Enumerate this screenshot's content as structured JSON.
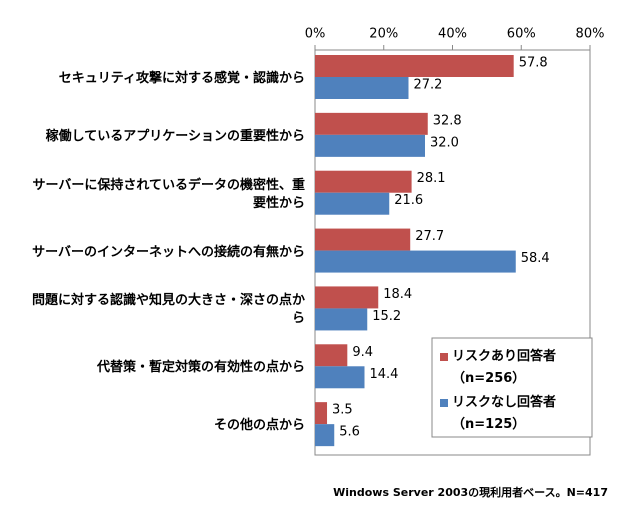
{
  "chart_data": {
    "type": "hbar",
    "categories": [
      "セキュリティ攻撃に対する感覚・認識から",
      "稼働しているアプリケーションの重要性から",
      "サーバーに保持されているデータの機密性、重要性から",
      "サーバーのインターネットへの接続の有無から",
      "問題に対する認識や知見の大きさ・深さの点から",
      "代替策・暫定対策の有効性の点から",
      "その他の点から"
    ],
    "series": [
      {
        "name": "リスクあり回答者（n=256）",
        "color": "#c0504d",
        "values": [
          57.8,
          32.8,
          28.1,
          27.7,
          18.4,
          9.4,
          3.5
        ],
        "value_labels": [
          "57.8",
          "32.8",
          "28.1",
          "27.7",
          "18.4",
          "9.4",
          "3.5"
        ]
      },
      {
        "name": "リスクなし回答者（n=125）",
        "color": "#4f81bd",
        "values": [
          27.2,
          32.0,
          21.6,
          58.4,
          15.2,
          14.4,
          5.6
        ],
        "value_labels": [
          "27.2",
          "32.0",
          "21.6",
          "58.4",
          "15.2",
          "14.4",
          "5.6"
        ]
      }
    ],
    "xlim": [
      0,
      80
    ],
    "xticks": [
      {
        "value": 0,
        "label": "0%"
      },
      {
        "value": 20,
        "label": "20%"
      },
      {
        "value": 40,
        "label": "40%"
      },
      {
        "value": 60,
        "label": "60%"
      },
      {
        "value": 80,
        "label": "80%"
      }
    ],
    "grid": false,
    "legend": "lower right",
    "footnote": "Windows Server 2003の現利用者ベース。N=417"
  }
}
